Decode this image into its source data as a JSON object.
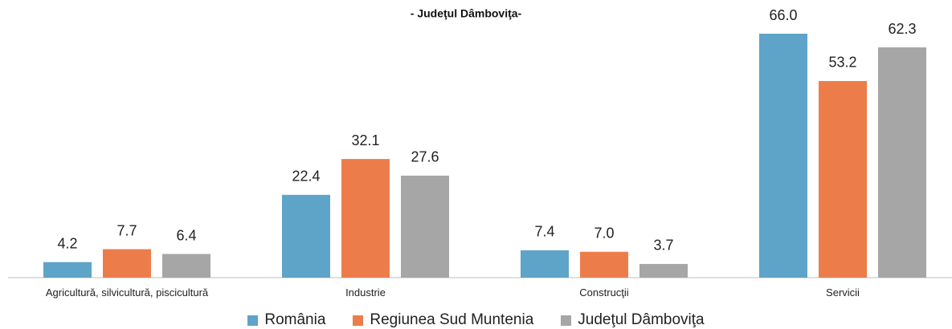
{
  "chart_data": {
    "type": "bar",
    "subtitle": "- Judeţul Dâmboviţa-",
    "categories": [
      "Agricultură, silvicultură, piscicultură",
      "Industrie",
      "Construcţii",
      "Servicii"
    ],
    "series": [
      {
        "name": "România",
        "color": "#5ea3c8",
        "values": [
          4.2,
          22.4,
          7.4,
          66.0
        ],
        "value_labels": [
          "4.2",
          "22.4",
          "7.4",
          "66.0"
        ]
      },
      {
        "name": "Regiunea Sud Muntenia",
        "color": "#ec7d4b",
        "values": [
          7.7,
          32.1,
          7.0,
          53.2
        ],
        "value_labels": [
          "7.7",
          "32.1",
          "7.0",
          "53.2"
        ]
      },
      {
        "name": "Judeţul Dâmboviţa",
        "color": "#a6a6a6",
        "values": [
          6.4,
          27.6,
          3.7,
          62.3
        ],
        "value_labels": [
          "6.4",
          "27.6",
          "3.7",
          "62.3"
        ]
      }
    ],
    "legend": "bottom"
  }
}
